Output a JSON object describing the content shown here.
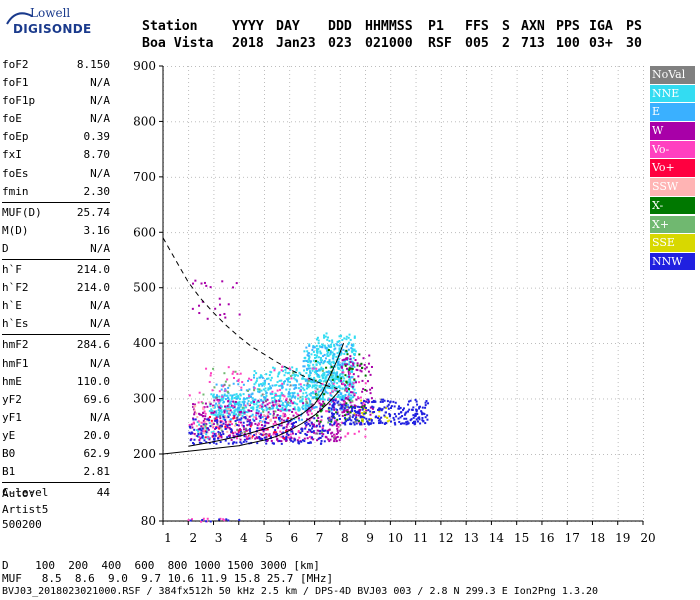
{
  "logo": {
    "line1": "Lowell",
    "line2": "DIGISONDE"
  },
  "header": {
    "labels": [
      "Station",
      "YYYY",
      "DAY",
      "DDD",
      "HHMMSS",
      "P1",
      "FFS",
      "S",
      "AXN",
      "PPS",
      "IGA",
      "PS"
    ],
    "values": [
      "Boa Vista",
      "2018",
      "Jan23",
      "023",
      "021000",
      "RSF",
      "005",
      "2",
      "713",
      "100",
      "03+",
      "30"
    ]
  },
  "params": {
    "group1": [
      {
        "label": "foF2",
        "value": "8.150"
      },
      {
        "label": "foF1",
        "value": "N/A"
      },
      {
        "label": "foF1p",
        "value": "N/A"
      },
      {
        "label": "foE",
        "value": "N/A"
      },
      {
        "label": "foEp",
        "value": "0.39"
      },
      {
        "label": "fxI",
        "value": "8.70"
      },
      {
        "label": "foEs",
        "value": "N/A"
      },
      {
        "label": "fmin",
        "value": "2.30"
      }
    ],
    "group2": [
      {
        "label": "MUF(D)",
        "value": "25.74"
      },
      {
        "label": "M(D)",
        "value": "3.16"
      },
      {
        "label": "D",
        "value": "N/A"
      }
    ],
    "group3": [
      {
        "label": "h`F",
        "value": "214.0"
      },
      {
        "label": "h`F2",
        "value": "214.0"
      },
      {
        "label": "h`E",
        "value": "N/A"
      },
      {
        "label": "h`Es",
        "value": "N/A"
      }
    ],
    "group4": [
      {
        "label": "hmF2",
        "value": "284.6"
      },
      {
        "label": "hmF1",
        "value": "N/A"
      },
      {
        "label": "hmE",
        "value": "110.0"
      },
      {
        "label": "yF2",
        "value": "69.6"
      },
      {
        "label": "yF1",
        "value": "N/A"
      },
      {
        "label": "yE",
        "value": "20.0"
      },
      {
        "label": "B0",
        "value": "62.9"
      },
      {
        "label": "B1",
        "value": "2.81"
      }
    ],
    "group5": [
      {
        "label": "C-level",
        "value": "44"
      }
    ]
  },
  "auto": {
    "line1": "Auto:",
    "line2": "Artist5",
    "line3": "500200"
  },
  "legend": [
    {
      "label": "NoVal",
      "color": "#808080"
    },
    {
      "label": "NNE",
      "color": "#33dcf2"
    },
    {
      "label": "E",
      "color": "#3ab0ff"
    },
    {
      "label": "W",
      "color": "#a800a8"
    },
    {
      "label": "Vo-",
      "color": "#ff40c0"
    },
    {
      "label": "Vo+",
      "color": "#ff0040"
    },
    {
      "label": "SSW",
      "color": "#ffb4b4"
    },
    {
      "label": "X-",
      "color": "#007800"
    },
    {
      "label": "X+",
      "color": "#70b870"
    },
    {
      "label": "SSE",
      "color": "#d8d800"
    },
    {
      "label": "NNW",
      "color": "#2020e0"
    }
  ],
  "bottom": {
    "d_line": "D    100  200  400  600  800 1000 1500 3000 [km]",
    "muf_line": "MUF   8.5  8.6  9.0  9.7 10.6 11.9 15.8 25.7 [MHz]",
    "footer": "BVJ03_2018023021000.RSF / 384fx512h 50 kHz 2.5 km / DPS-4D BVJ03 003 / 2.8 N 299.3 E Ion2Png 1.3.20"
  },
  "chart_data": {
    "type": "scatter",
    "x_ticks": [
      1,
      2,
      3,
      4,
      5,
      6,
      7,
      8,
      9,
      10,
      11,
      12,
      13,
      14,
      15,
      16,
      17,
      18,
      19,
      20
    ],
    "y_ticks": [
      80,
      200,
      300,
      400,
      500,
      600,
      700,
      800,
      900
    ],
    "xlim": [
      1,
      20
    ],
    "ylim_display": [
      80,
      900
    ],
    "grid": true,
    "series": [
      {
        "name": "NNE",
        "color": "#33dcf2",
        "clusters": [
          {
            "x": [
              2.8,
              4.5
            ],
            "y": [
              270,
              310
            ],
            "n": 160
          },
          {
            "x": [
              4.5,
              7.0
            ],
            "y": [
              280,
              360
            ],
            "n": 260
          },
          {
            "x": [
              7.0,
              8.6
            ],
            "y": [
              300,
              420
            ],
            "n": 280
          },
          {
            "x": [
              6.5,
              8.0
            ],
            "y": [
              320,
              400
            ],
            "n": 160
          },
          {
            "x": [
              2.3,
              3.0
            ],
            "y": [
              230,
              260
            ],
            "n": 30
          }
        ]
      },
      {
        "name": "E",
        "color": "#3ab0ff",
        "clusters": [
          {
            "x": [
              3.0,
              6.5
            ],
            "y": [
              260,
              340
            ],
            "n": 160
          },
          {
            "x": [
              6.5,
              8.5
            ],
            "y": [
              280,
              400
            ],
            "n": 140
          }
        ]
      },
      {
        "name": "W",
        "color": "#a800a8",
        "clusters": [
          {
            "x": [
              2.0,
              8.0
            ],
            "y": [
              225,
              300
            ],
            "n": 320
          },
          {
            "x": [
              8.0,
              9.3
            ],
            "y": [
              270,
              380
            ],
            "n": 110
          },
          {
            "x": [
              2.0,
              4.0
            ],
            "y": [
              445,
              520
            ],
            "n": 22
          }
        ]
      },
      {
        "name": "Vo-",
        "color": "#ff40c0",
        "clusters": [
          {
            "x": [
              2.0,
              9.0
            ],
            "y": [
              230,
              360
            ],
            "n": 180
          },
          {
            "x": [
              1.9,
              3.5
            ],
            "y": [
              80,
              86
            ],
            "n": 10
          }
        ]
      },
      {
        "name": "Vo+",
        "color": "#ff0040",
        "clusters": [
          {
            "x": [
              2.5,
              6.0
            ],
            "y": [
              230,
              270
            ],
            "n": 45
          }
        ]
      },
      {
        "name": "SSW",
        "color": "#ffb4b4",
        "clusters": [
          {
            "x": [
              2.0,
              6.0
            ],
            "y": [
              230,
              300
            ],
            "n": 60
          }
        ]
      },
      {
        "name": "X-",
        "color": "#007800",
        "clusters": [
          {
            "x": [
              7.0,
              9.0
            ],
            "y": [
              260,
              390
            ],
            "n": 60
          }
        ]
      },
      {
        "name": "X+",
        "color": "#70b870",
        "clusters": [
          {
            "x": [
              2.5,
              8.5
            ],
            "y": [
              240,
              360
            ],
            "n": 45
          }
        ]
      },
      {
        "name": "SSE",
        "color": "#d8d800",
        "clusters": [
          {
            "x": [
              8.5,
              10.0
            ],
            "y": [
              260,
              300
            ],
            "n": 25
          }
        ]
      },
      {
        "name": "NNW",
        "color": "#2020e0",
        "clusters": [
          {
            "x": [
              2.0,
              7.5
            ],
            "y": [
              220,
              270
            ],
            "n": 220
          },
          {
            "x": [
              7.5,
              11.5
            ],
            "y": [
              255,
              300
            ],
            "n": 260
          },
          {
            "x": [
              2.0,
              4.0
            ],
            "y": [
              80,
              86
            ],
            "n": 8
          }
        ]
      },
      {
        "name": "NoVal",
        "color": "#808080",
        "clusters": [
          {
            "x": [
              3.0,
              9.0
            ],
            "y": [
              230,
              330
            ],
            "n": 30
          }
        ]
      }
    ],
    "dashed_curve": {
      "x": [
        1,
        1.5,
        2,
        2.5,
        3,
        3.5,
        4,
        4.5,
        5,
        5.5,
        6,
        6.5,
        7,
        7.5,
        7.9
      ],
      "y": [
        590,
        550,
        510,
        480,
        455,
        432,
        412,
        394,
        380,
        366,
        353,
        342,
        332,
        323,
        318
      ]
    },
    "lower_curve": {
      "x": [
        1,
        2,
        3,
        4,
        5,
        5.5,
        6,
        6.5,
        7,
        7.5,
        8
      ],
      "y": [
        200,
        205,
        210,
        215,
        225,
        232,
        242,
        255,
        270,
        290,
        315
      ]
    },
    "profile_line": {
      "x": [
        2,
        3,
        4,
        5,
        6,
        6.5,
        7,
        7.3,
        7.6,
        7.9,
        8.15
      ],
      "y": [
        214,
        222,
        232,
        245,
        260,
        272,
        290,
        310,
        340,
        370,
        400
      ]
    }
  }
}
